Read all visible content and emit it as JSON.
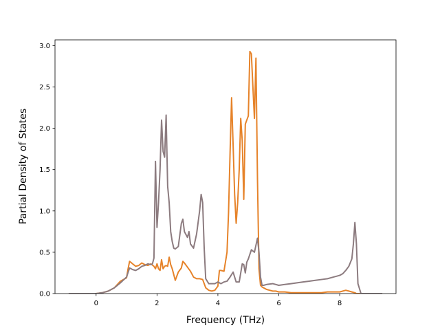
{
  "chart_data": {
    "type": "line",
    "title": "",
    "xlabel": "Frequency (THz)",
    "ylabel": "Partial Density of States",
    "xlim": [
      -1.35,
      9.85
    ],
    "ylim": [
      0.0,
      3.07
    ],
    "xticks": [
      0,
      2,
      4,
      6,
      8
    ],
    "xtick_labels": [
      "0",
      "2",
      "4",
      "6",
      "8"
    ],
    "yticks": [
      0.0,
      0.5,
      1.0,
      1.5,
      2.0,
      2.5,
      3.0
    ],
    "ytick_labels": [
      "0.0",
      "0.5",
      "1.0",
      "1.5",
      "2.0",
      "2.5",
      "3.0"
    ],
    "grid": false,
    "legend": false,
    "series": [
      {
        "color": "#e6832a",
        "x": [
          -0.9,
          0.0,
          0.2,
          0.4,
          0.6,
          0.8,
          1.0,
          1.05,
          1.1,
          1.2,
          1.3,
          1.4,
          1.5,
          1.6,
          1.7,
          1.8,
          1.9,
          1.95,
          2.0,
          2.05,
          2.1,
          2.15,
          2.2,
          2.25,
          2.3,
          2.35,
          2.4,
          2.45,
          2.5,
          2.6,
          2.7,
          2.8,
          2.85,
          2.9,
          3.0,
          3.1,
          3.2,
          3.3,
          3.4,
          3.5,
          3.6,
          3.7,
          3.8,
          3.9,
          4.0,
          4.05,
          4.1,
          4.2,
          4.3,
          4.35,
          4.4,
          4.45,
          4.5,
          4.55,
          4.6,
          4.65,
          4.7,
          4.75,
          4.8,
          4.85,
          4.9,
          4.95,
          5.0,
          5.05,
          5.1,
          5.15,
          5.2,
          5.25,
          5.3,
          5.35,
          5.4,
          5.45,
          5.5,
          5.6,
          5.7,
          5.8,
          5.9,
          6.0,
          6.2,
          6.4,
          6.6,
          6.8,
          7.0,
          7.2,
          7.4,
          7.6,
          7.8,
          8.0,
          8.2,
          8.4,
          8.5,
          8.55,
          8.6,
          8.7,
          9.4
        ],
        "y": [
          0.0,
          0.0,
          0.01,
          0.03,
          0.07,
          0.15,
          0.19,
          0.3,
          0.39,
          0.36,
          0.33,
          0.34,
          0.37,
          0.35,
          0.34,
          0.36,
          0.33,
          0.3,
          0.36,
          0.3,
          0.28,
          0.41,
          0.3,
          0.33,
          0.34,
          0.33,
          0.44,
          0.35,
          0.3,
          0.16,
          0.26,
          0.31,
          0.39,
          0.37,
          0.32,
          0.27,
          0.2,
          0.18,
          0.18,
          0.17,
          0.07,
          0.04,
          0.03,
          0.04,
          0.09,
          0.28,
          0.28,
          0.27,
          0.5,
          0.98,
          1.7,
          2.37,
          1.8,
          1.2,
          0.85,
          1.1,
          1.5,
          2.12,
          1.85,
          1.14,
          2.05,
          2.1,
          2.15,
          2.93,
          2.9,
          2.5,
          2.12,
          2.85,
          1.4,
          0.3,
          0.1,
          0.08,
          0.07,
          0.05,
          0.04,
          0.03,
          0.03,
          0.02,
          0.02,
          0.01,
          0.01,
          0.01,
          0.01,
          0.01,
          0.01,
          0.02,
          0.02,
          0.02,
          0.04,
          0.02,
          0.01,
          0.0,
          0.0,
          0.0,
          0.0
        ]
      },
      {
        "color": "#8c7b7f",
        "x": [
          -0.9,
          0.0,
          0.2,
          0.4,
          0.6,
          0.8,
          1.0,
          1.1,
          1.2,
          1.3,
          1.4,
          1.5,
          1.6,
          1.7,
          1.8,
          1.85,
          1.9,
          1.95,
          2.0,
          2.05,
          2.1,
          2.15,
          2.2,
          2.25,
          2.3,
          2.35,
          2.4,
          2.45,
          2.5,
          2.55,
          2.6,
          2.7,
          2.8,
          2.85,
          2.9,
          3.0,
          3.05,
          3.1,
          3.2,
          3.3,
          3.4,
          3.45,
          3.5,
          3.55,
          3.6,
          3.7,
          3.8,
          3.9,
          4.0,
          4.1,
          4.2,
          4.3,
          4.4,
          4.5,
          4.6,
          4.7,
          4.8,
          4.85,
          4.9,
          4.95,
          5.0,
          5.1,
          5.2,
          5.3,
          5.35,
          5.4,
          5.45,
          5.5,
          5.6,
          5.8,
          6.0,
          6.2,
          6.4,
          6.6,
          6.8,
          7.0,
          7.2,
          7.4,
          7.6,
          7.8,
          8.0,
          8.1,
          8.2,
          8.3,
          8.4,
          8.45,
          8.5,
          8.55,
          8.6,
          8.7,
          9.4
        ],
        "y": [
          0.0,
          0.0,
          0.01,
          0.03,
          0.07,
          0.13,
          0.2,
          0.31,
          0.29,
          0.28,
          0.3,
          0.33,
          0.34,
          0.36,
          0.35,
          0.36,
          0.43,
          1.6,
          0.8,
          1.1,
          1.5,
          2.1,
          1.72,
          1.65,
          2.16,
          1.3,
          1.1,
          0.75,
          0.63,
          0.55,
          0.54,
          0.57,
          0.85,
          0.9,
          0.75,
          0.68,
          0.75,
          0.6,
          0.55,
          0.72,
          1.0,
          1.2,
          1.1,
          0.55,
          0.18,
          0.12,
          0.12,
          0.12,
          0.14,
          0.12,
          0.14,
          0.15,
          0.2,
          0.26,
          0.14,
          0.14,
          0.36,
          0.35,
          0.25,
          0.38,
          0.42,
          0.53,
          0.5,
          0.67,
          0.5,
          0.2,
          0.1,
          0.1,
          0.11,
          0.12,
          0.1,
          0.11,
          0.12,
          0.13,
          0.14,
          0.15,
          0.16,
          0.17,
          0.18,
          0.2,
          0.22,
          0.24,
          0.28,
          0.33,
          0.42,
          0.6,
          0.86,
          0.6,
          0.12,
          0.0,
          0.0
        ]
      }
    ]
  }
}
